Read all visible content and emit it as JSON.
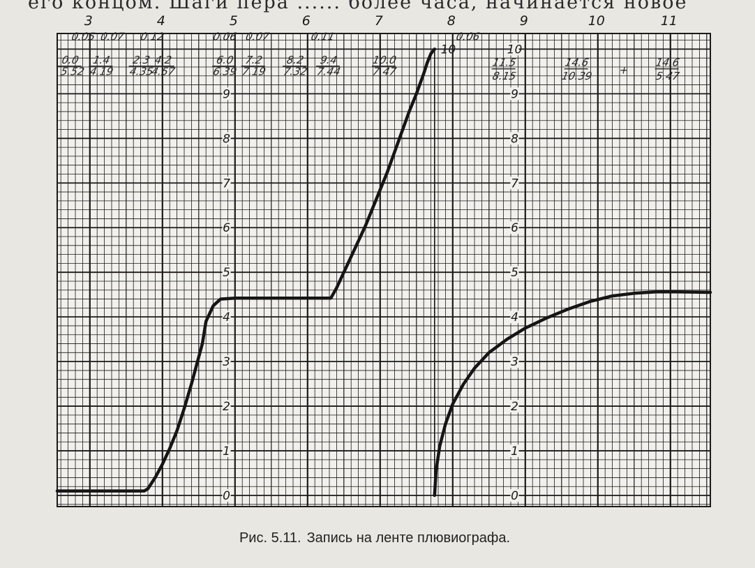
{
  "page_text": {
    "top_line": "его концом. Шаги пера ...... более часа, начинается новое"
  },
  "caption": {
    "prefix": "Рис. 5.11.",
    "text": "Запись на ленте плювиографа."
  },
  "chart_data": {
    "type": "line",
    "title": "",
    "xlabel": "",
    "ylabel": "",
    "x_ticks": [
      "3",
      "4",
      "5",
      "6",
      "7",
      "8",
      "9",
      "10",
      "11"
    ],
    "y_ticks": [
      "0",
      "1",
      "2",
      "3",
      "4",
      "5",
      "6",
      "7",
      "8",
      "9",
      "10"
    ],
    "xlim": [
      2.55,
      11.55
    ],
    "ylim": [
      -0.25,
      10.35
    ],
    "grid": true,
    "series": [
      {
        "x": [
          2.55,
          3.75,
          3.8,
          3.9,
          4.0,
          4.1,
          4.2,
          4.3,
          4.4,
          4.5,
          4.55,
          4.6,
          4.7,
          4.8,
          5.0,
          5.2,
          5.4,
          5.6,
          5.8,
          6.0,
          6.2,
          6.32,
          6.4,
          6.5,
          6.6,
          6.7,
          6.8,
          6.9,
          7.0,
          7.1,
          7.2,
          7.3,
          7.4,
          7.5,
          7.6,
          7.65,
          7.7,
          7.75
        ],
        "y": [
          0.1,
          0.1,
          0.15,
          0.4,
          0.7,
          1.05,
          1.45,
          1.95,
          2.5,
          3.1,
          3.4,
          3.9,
          4.25,
          4.4,
          4.42,
          4.42,
          4.42,
          4.42,
          4.42,
          4.42,
          4.42,
          4.42,
          4.65,
          5.0,
          5.35,
          5.7,
          6.05,
          6.45,
          6.85,
          7.25,
          7.7,
          8.15,
          8.6,
          9.0,
          9.45,
          9.7,
          9.9,
          10.0
        ]
      },
      {
        "x": [
          7.75,
          7.77,
          7.82,
          7.9,
          8.0,
          8.15,
          8.3,
          8.5,
          8.75,
          9.0,
          9.3,
          9.6,
          9.9,
          10.2,
          10.5,
          10.8,
          11.1,
          11.55
        ],
        "y": [
          0.0,
          0.55,
          1.1,
          1.6,
          2.05,
          2.5,
          2.85,
          3.2,
          3.5,
          3.75,
          3.98,
          4.18,
          4.35,
          4.47,
          4.53,
          4.56,
          4.56,
          4.55
        ]
      }
    ],
    "handwritten_notes": [
      {
        "text": "0.05",
        "x": 2.9,
        "y": 10.2
      },
      {
        "text": "0.07",
        "x": 3.3,
        "y": 10.2
      },
      {
        "text": "0.12",
        "x": 3.85,
        "y": 10.2
      },
      {
        "text": "0.06",
        "x": 4.85,
        "y": 10.2
      },
      {
        "text": "0.07",
        "x": 5.3,
        "y": 10.2
      },
      {
        "text": "0.11",
        "x": 6.2,
        "y": 10.2
      },
      {
        "text": "0.06",
        "x": 8.2,
        "y": 10.2
      },
      {
        "text": "0.0",
        "x": 2.72,
        "y": 9.68
      },
      {
        "text": "5.52",
        "x": 2.75,
        "y": 9.42
      },
      {
        "text": "1.4",
        "x": 3.15,
        "y": 9.68
      },
      {
        "text": "4.19",
        "x": 3.15,
        "y": 9.42
      },
      {
        "text": "2.3",
        "x": 3.7,
        "y": 9.68
      },
      {
        "text": "4.35",
        "x": 3.7,
        "y": 9.42
      },
      {
        "text": "4.2",
        "x": 4.0,
        "y": 9.68
      },
      {
        "text": "4.57",
        "x": 4.0,
        "y": 9.42
      },
      {
        "text": "6.0",
        "x": 4.85,
        "y": 9.68
      },
      {
        "text": "6.39",
        "x": 4.85,
        "y": 9.42
      },
      {
        "text": "7.2",
        "x": 5.25,
        "y": 9.68
      },
      {
        "text": "7.19",
        "x": 5.25,
        "y": 9.42
      },
      {
        "text": "8.2",
        "x": 5.82,
        "y": 9.68
      },
      {
        "text": "7.32",
        "x": 5.82,
        "y": 9.42
      },
      {
        "text": "9.4",
        "x": 6.28,
        "y": 9.68
      },
      {
        "text": "7.44",
        "x": 6.28,
        "y": 9.42
      },
      {
        "text": "10.0",
        "x": 7.05,
        "y": 9.68
      },
      {
        "text": "7.47",
        "x": 7.05,
        "y": 9.42
      },
      {
        "text": "11.5",
        "x": 8.7,
        "y": 9.62
      },
      {
        "text": "8.15",
        "x": 8.7,
        "y": 9.32
      },
      {
        "text": "14.6",
        "x": 9.7,
        "y": 9.62
      },
      {
        "text": "10.39",
        "x": 9.7,
        "y": 9.32
      },
      {
        "text": "+",
        "x": 10.35,
        "y": 9.45
      },
      {
        "text": "14.6",
        "x": 10.95,
        "y": 9.62
      },
      {
        "text": "5.47",
        "x": 10.95,
        "y": 9.32
      }
    ]
  }
}
